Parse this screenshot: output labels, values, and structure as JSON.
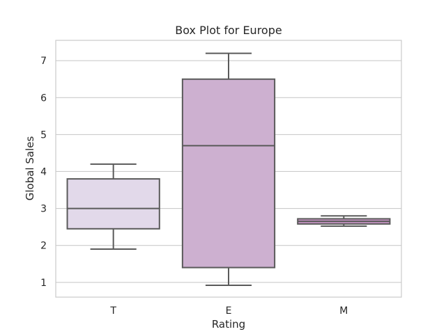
{
  "chart_data": {
    "type": "box",
    "title": "Box Plot for Europe",
    "xlabel": "Rating",
    "ylabel": "Global Sales",
    "ylim": [
      0.6,
      7.55
    ],
    "yticks": [
      1,
      2,
      3,
      4,
      5,
      6,
      7
    ],
    "grid": "horizontal",
    "categories": [
      "T",
      "E",
      "M"
    ],
    "boxes": [
      {
        "category": "T",
        "whisker_low": 1.9,
        "q1": 2.45,
        "median": 3.0,
        "q3": 3.8,
        "whisker_high": 4.2,
        "color": "#e2d9ea"
      },
      {
        "category": "E",
        "whisker_low": 0.92,
        "q1": 1.4,
        "median": 4.7,
        "q3": 6.5,
        "whisker_high": 7.2,
        "color": "#cdb0d0"
      },
      {
        "category": "M",
        "whisker_low": 2.52,
        "q1": 2.58,
        "median": 2.65,
        "q3": 2.72,
        "whisker_high": 2.8,
        "color": "#c693c3"
      }
    ],
    "line_color": "#5a5a5a",
    "grid_color": "#cccccc",
    "frame_color": "#cccccc"
  }
}
